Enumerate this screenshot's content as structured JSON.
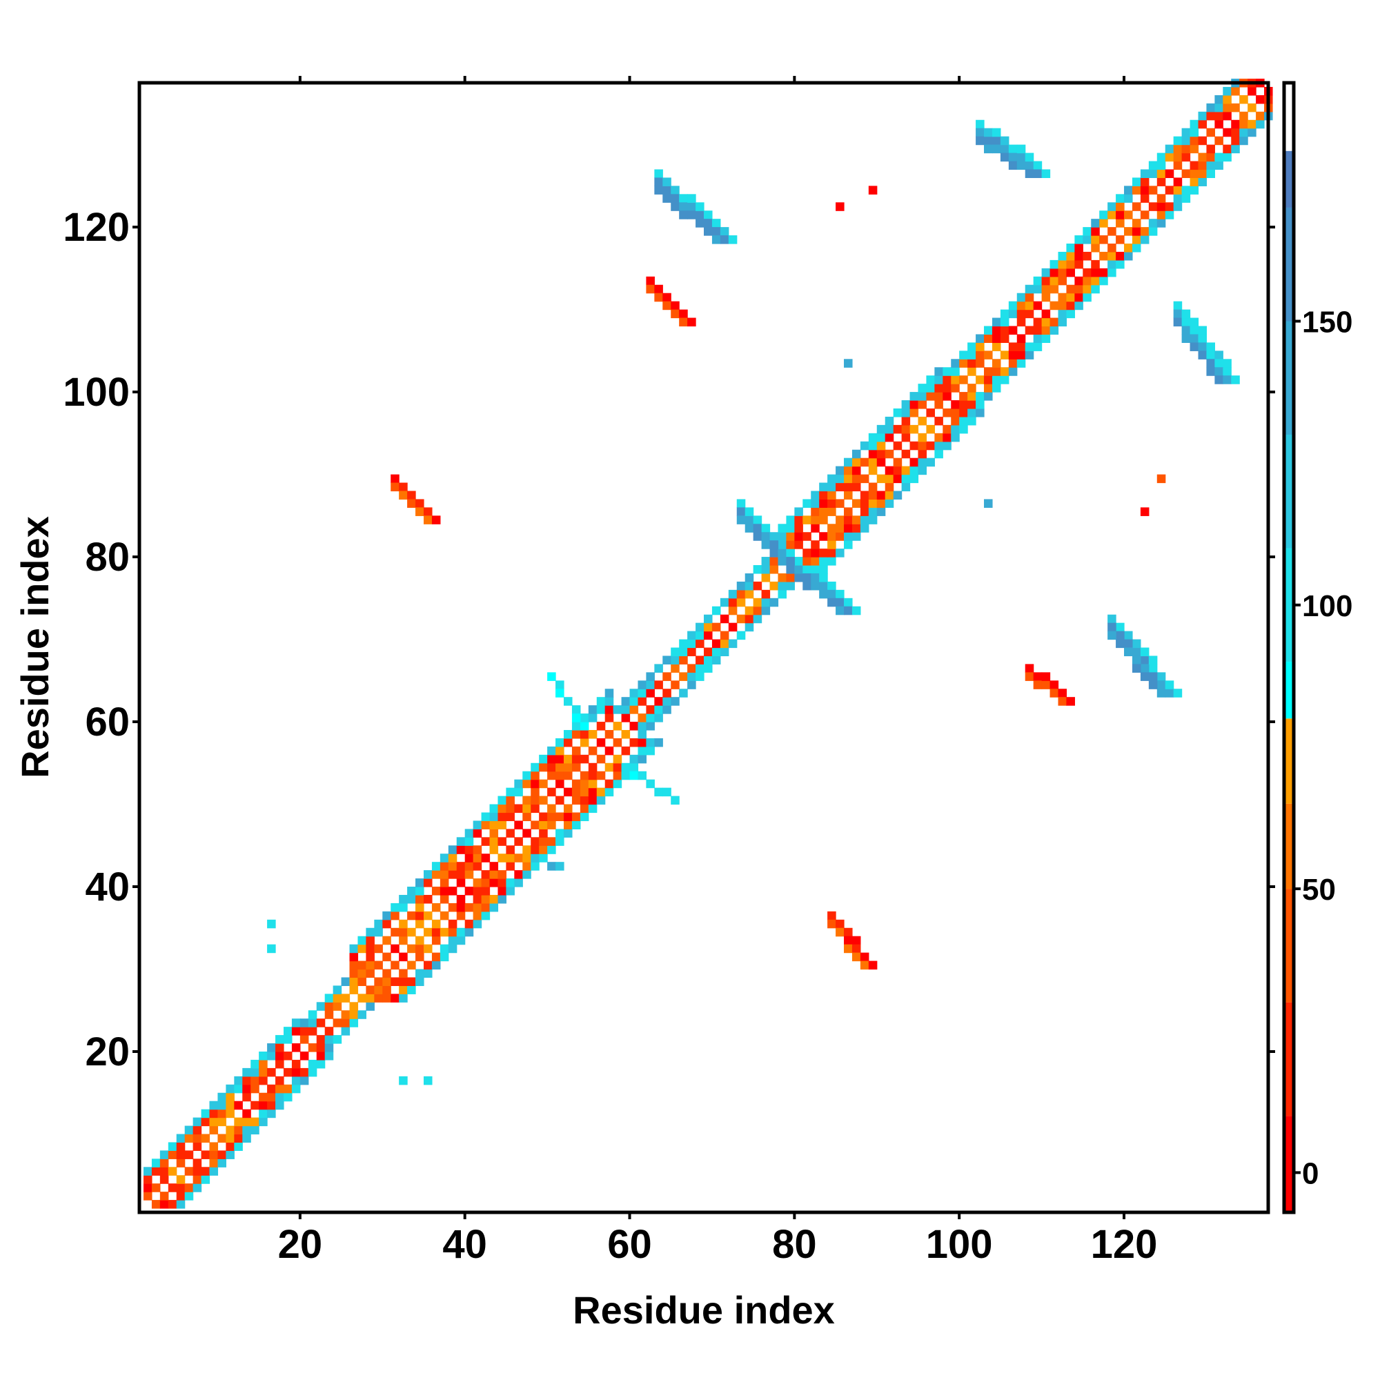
{
  "chart_data": {
    "type": "heatmap",
    "title": "",
    "xlabel": "Residue index",
    "ylabel": "Residue index",
    "xlim": [
      0.5,
      137.5
    ],
    "ylim": [
      0.5,
      137.5
    ],
    "n_residues": 137,
    "xticks": [
      "20",
      "40",
      "60",
      "80",
      "100",
      "120"
    ],
    "yticks": [
      "20",
      "40",
      "60",
      "80",
      "100",
      "120"
    ],
    "xtick_values": [
      20,
      40,
      60,
      80,
      100,
      120
    ],
    "ytick_values": [
      20,
      40,
      60,
      80,
      100,
      120
    ],
    "colorbar": {
      "range": [
        -7,
        192
      ],
      "ticks": [
        "0",
        "50",
        "100",
        "150"
      ],
      "tick_values": [
        0,
        50,
        100,
        150
      ],
      "bands": [
        {
          "from": -10,
          "to": 10,
          "color": "#ff0000"
        },
        {
          "from": 10,
          "to": 30,
          "color": "#ff2600"
        },
        {
          "from": 30,
          "to": 50,
          "color": "#ff5500"
        },
        {
          "from": 50,
          "to": 65,
          "color": "#ff7400"
        },
        {
          "from": 65,
          "to": 80,
          "color": "#ff9e00"
        },
        {
          "from": 80,
          "to": 90,
          "color": "#00ffff"
        },
        {
          "from": 90,
          "to": 110,
          "color": "#1fe0ea"
        },
        {
          "from": 110,
          "to": 130,
          "color": "#2cc6e0"
        },
        {
          "from": 130,
          "to": 150,
          "color": "#38a9d3"
        },
        {
          "from": 150,
          "to": 170,
          "color": "#4490c8"
        },
        {
          "from": 170,
          "to": 180,
          "color": "#4e7cbe"
        },
        {
          "from": 180,
          "to": 195,
          "color": "#ffffff"
        }
      ]
    },
    "diagonal_segments": [
      {
        "from": 1,
        "to": 20,
        "width": 4
      },
      {
        "from": 20,
        "to": 26,
        "width": 3
      },
      {
        "from": 26,
        "to": 58,
        "width": 6
      },
      {
        "from": 58,
        "to": 78,
        "width": 3
      },
      {
        "from": 78,
        "to": 98,
        "width": 5
      },
      {
        "from": 98,
        "to": 137,
        "width": 4
      }
    ],
    "clusters": [
      {
        "from": [
          63,
          124
        ],
        "to": [
          70,
          118
        ],
        "thickness": 3,
        "value": 155
      },
      {
        "from": [
          124,
          63
        ],
        "to": [
          118,
          70
        ],
        "thickness": 3,
        "value": 155
      },
      {
        "from": [
          102,
          130
        ],
        "to": [
          108,
          126
        ],
        "thickness": 3,
        "value": 150
      },
      {
        "from": [
          126,
          108
        ],
        "to": [
          131,
          101
        ],
        "thickness": 3,
        "value": 150
      },
      {
        "from": [
          73,
          84
        ],
        "to": [
          79,
          78
        ],
        "thickness": 3,
        "value": 150
      },
      {
        "from": [
          79,
          78
        ],
        "to": [
          85,
          73
        ],
        "thickness": 3,
        "value": 150
      },
      {
        "from": [
          62,
          112
        ],
        "to": [
          66,
          108
        ],
        "thickness": 2,
        "value": 40
      },
      {
        "from": [
          108,
          65
        ],
        "to": [
          112,
          62
        ],
        "thickness": 2,
        "value": 40
      },
      {
        "from": [
          31,
          88
        ],
        "to": [
          35,
          84
        ],
        "thickness": 2,
        "value": 55
      },
      {
        "from": [
          84,
          35
        ],
        "to": [
          88,
          30
        ],
        "thickness": 2,
        "value": 55
      },
      {
        "from": [
          50,
          65
        ],
        "to": [
          54,
          59
        ],
        "thickness": 1,
        "value": 95
      },
      {
        "from": [
          59,
          54
        ],
        "to": [
          65,
          50
        ],
        "thickness": 1,
        "value": 95
      },
      {
        "from": [
          85,
          122
        ],
        "to": [
          85,
          122
        ],
        "thickness": 1,
        "value": 0
      },
      {
        "from": [
          89,
          124
        ],
        "to": [
          89,
          124
        ],
        "thickness": 1,
        "value": 5
      },
      {
        "from": [
          86,
          103
        ],
        "to": [
          86,
          103
        ],
        "thickness": 1,
        "value": 140
      },
      {
        "from": [
          103,
          86
        ],
        "to": [
          103,
          86
        ],
        "thickness": 1,
        "value": 140
      },
      {
        "from": [
          124,
          89
        ],
        "to": [
          124,
          89
        ],
        "thickness": 1,
        "value": 45
      },
      {
        "from": [
          122,
          85
        ],
        "to": [
          122,
          85
        ],
        "thickness": 1,
        "value": 0
      },
      {
        "from": [
          16,
          32
        ],
        "to": [
          16,
          32
        ],
        "thickness": 1,
        "value": 100
      },
      {
        "from": [
          16,
          35
        ],
        "to": [
          16,
          35
        ],
        "thickness": 1,
        "value": 100
      },
      {
        "from": [
          32,
          16
        ],
        "to": [
          32,
          16
        ],
        "thickness": 1,
        "value": 100
      },
      {
        "from": [
          35,
          16
        ],
        "to": [
          35,
          16
        ],
        "thickness": 1,
        "value": 100
      },
      {
        "from": [
          50,
          42
        ],
        "to": [
          51,
          42
        ],
        "thickness": 1,
        "value": 130
      }
    ]
  }
}
